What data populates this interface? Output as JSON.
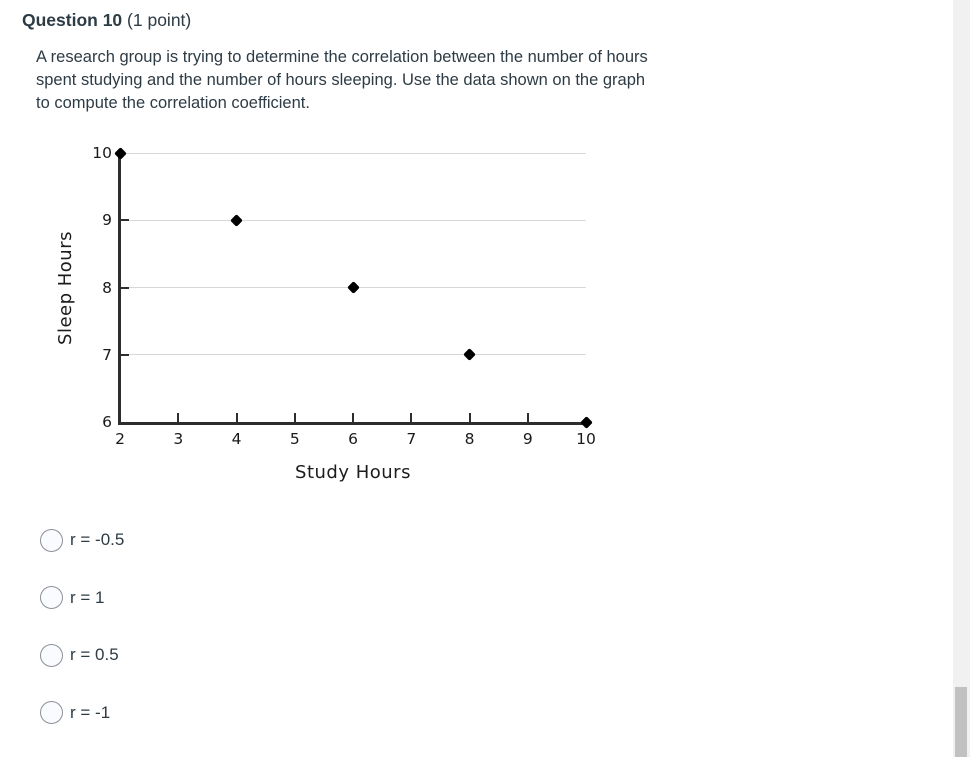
{
  "header": {
    "title": "Question 10",
    "points": "(1 point)"
  },
  "question": {
    "prompt_lines": [
      "A research group is trying to determine the correlation between the number of hours",
      "spent studying and the number of hours sleeping. Use the data shown on the graph",
      "to compute the correlation coefficient."
    ]
  },
  "chart_data": {
    "type": "scatter",
    "title": "",
    "xlabel": "Study Hours",
    "ylabel": "Sleep Hours",
    "x": [
      2,
      4,
      6,
      8,
      10
    ],
    "y": [
      10,
      9,
      8,
      7,
      6
    ],
    "xlim": [
      2,
      10
    ],
    "ylim": [
      6,
      10
    ],
    "xticks": [
      2,
      3,
      4,
      5,
      6,
      7,
      8,
      9,
      10
    ],
    "yticks": [
      6,
      7,
      8,
      9,
      10
    ],
    "grid": "horizontal-only",
    "legend": "none",
    "marker": "black-diamond",
    "colors": {
      "point": "#000000",
      "axis": "#2d2d2d",
      "gridline": "#d8d8d8",
      "tick_text": "#1a1a1a"
    }
  },
  "options": [
    {
      "label": "r = -0.5",
      "selected": false
    },
    {
      "label": "r = 1",
      "selected": false
    },
    {
      "label": "r = 0.5",
      "selected": false
    },
    {
      "label": "r = -1",
      "selected": false
    }
  ],
  "colors": {
    "text": "#2d3b45",
    "background": "#ffffff",
    "scrollbar_track": "#f1f1f1",
    "scrollbar_thumb": "#c1c1c1"
  }
}
